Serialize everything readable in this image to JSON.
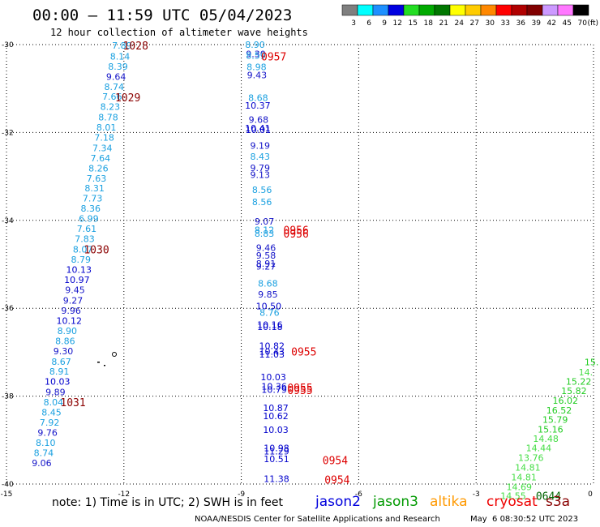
{
  "header": {
    "title": "00:00 — 11:59 UTC 05/04/2023",
    "subtitle": "12 hour collection of altimeter wave heights"
  },
  "legend": {
    "unit": "(ft)",
    "items": [
      {
        "label": "3",
        "color": "#7f7f7f"
      },
      {
        "label": "6",
        "color": "#00ffff"
      },
      {
        "label": "9",
        "color": "#1e90ff"
      },
      {
        "label": "12",
        "color": "#0000e0"
      },
      {
        "label": "15",
        "color": "#22dd22"
      },
      {
        "label": "18",
        "color": "#00aa00"
      },
      {
        "label": "21",
        "color": "#007700"
      },
      {
        "label": "24",
        "color": "#ffff00"
      },
      {
        "label": "27",
        "color": "#ffcc00"
      },
      {
        "label": "30",
        "color": "#ff8800"
      },
      {
        "label": "33",
        "color": "#ff0000"
      },
      {
        "label": "36",
        "color": "#b00000"
      },
      {
        "label": "39",
        "color": "#800000"
      },
      {
        "label": "42",
        "color": "#cc99ff"
      },
      {
        "label": "45",
        "color": "#ff77ff"
      },
      {
        "label": "70",
        "color": "#000000"
      }
    ]
  },
  "axes": {
    "x_ticks": [
      "-15",
      "-12",
      "-9",
      "-6",
      "-3",
      "0"
    ],
    "y_ticks": [
      "-30",
      "-32",
      "-34",
      "-36",
      "-38",
      "-40"
    ]
  },
  "chart_data": {
    "type": "scatter",
    "xlim": [
      -15,
      0
    ],
    "ylim": [
      -40,
      -30
    ],
    "colors": {
      "c6": "#1aa0e0",
      "c9": "#1414c8",
      "c12": "#0000cc",
      "g15": "#22cc22",
      "g18": "#44dd44",
      "time_a": "#8b0000",
      "time_b": "#dd0000",
      "time_c": "#006400"
    },
    "tracks": [
      {
        "points": [
          {
            "x": -12.05,
            "y": -30.02,
            "label": "7.89",
            "c": "c6"
          },
          {
            "x": -12.1,
            "y": -30.27,
            "label": "8.14",
            "c": "c6"
          },
          {
            "x": -12.15,
            "y": -30.5,
            "label": "8.39",
            "c": "c6"
          },
          {
            "x": -12.2,
            "y": -30.73,
            "label": "9.64",
            "c": "c9"
          },
          {
            "x": -12.25,
            "y": -30.96,
            "label": "8.74",
            "c": "c6"
          },
          {
            "x": -12.3,
            "y": -31.18,
            "label": "7.66",
            "c": "c6"
          },
          {
            "x": -12.35,
            "y": -31.41,
            "label": "8.23",
            "c": "c6"
          },
          {
            "x": -12.4,
            "y": -31.65,
            "label": "8.78",
            "c": "c6"
          },
          {
            "x": -12.45,
            "y": -31.88,
            "label": "8.01",
            "c": "c6"
          },
          {
            "x": -12.5,
            "y": -32.11,
            "label": "7.18",
            "c": "c6"
          },
          {
            "x": -12.55,
            "y": -32.35,
            "label": "7.34",
            "c": "c6"
          },
          {
            "x": -12.6,
            "y": -32.58,
            "label": "7.64",
            "c": "c6"
          },
          {
            "x": -12.65,
            "y": -32.81,
            "label": "8.26",
            "c": "c6"
          },
          {
            "x": -12.7,
            "y": -33.04,
            "label": "7.63",
            "c": "c6"
          },
          {
            "x": -12.75,
            "y": -33.27,
            "label": "8.31",
            "c": "c6"
          },
          {
            "x": -12.8,
            "y": -33.5,
            "label": "7.73",
            "c": "c6"
          },
          {
            "x": -12.85,
            "y": -33.73,
            "label": "8.36",
            "c": "c6"
          },
          {
            "x": -12.9,
            "y": -33.96,
            "label": "6.99",
            "c": "c6"
          },
          {
            "x": -12.95,
            "y": -34.19,
            "label": "7.61",
            "c": "c6"
          },
          {
            "x": -13.0,
            "y": -34.42,
            "label": "7.83",
            "c": "c6"
          },
          {
            "x": -13.05,
            "y": -34.66,
            "label": "8.07",
            "c": "c6"
          },
          {
            "x": -13.1,
            "y": -34.89,
            "label": "8.79",
            "c": "c6"
          },
          {
            "x": -13.15,
            "y": -35.12,
            "label": "10.13",
            "c": "c12"
          },
          {
            "x": -13.2,
            "y": -35.35,
            "label": "10.97",
            "c": "c12"
          },
          {
            "x": -13.25,
            "y": -35.58,
            "label": "9.45",
            "c": "c9"
          },
          {
            "x": -13.3,
            "y": -35.82,
            "label": "9.27",
            "c": "c9"
          },
          {
            "x": -13.35,
            "y": -36.05,
            "label": "9.96",
            "c": "c9"
          },
          {
            "x": -13.4,
            "y": -36.28,
            "label": "10.12",
            "c": "c12"
          },
          {
            "x": -13.45,
            "y": -36.51,
            "label": "8.90",
            "c": "c6"
          },
          {
            "x": -13.5,
            "y": -36.74,
            "label": "8.86",
            "c": "c6"
          },
          {
            "x": -13.55,
            "y": -36.97,
            "label": "9.30",
            "c": "c9"
          },
          {
            "x": -13.6,
            "y": -37.21,
            "label": "8.67",
            "c": "c6"
          },
          {
            "x": -13.65,
            "y": -37.44,
            "label": "8.91",
            "c": "c6"
          },
          {
            "x": -13.7,
            "y": -37.67,
            "label": "10.03",
            "c": "c12"
          },
          {
            "x": -13.75,
            "y": -37.91,
            "label": "9.89",
            "c": "c9"
          },
          {
            "x": -13.8,
            "y": -38.14,
            "label": "8.04",
            "c": "c6"
          },
          {
            "x": -13.85,
            "y": -38.37,
            "label": "8.45",
            "c": "c6"
          },
          {
            "x": -13.9,
            "y": -38.6,
            "label": "7.92",
            "c": "c6"
          },
          {
            "x": -13.95,
            "y": -38.83,
            "label": "9.76",
            "c": "c9"
          },
          {
            "x": -14.0,
            "y": -39.06,
            "label": "8.10",
            "c": "c6"
          },
          {
            "x": -14.05,
            "y": -39.29,
            "label": "8.74",
            "c": "c6"
          },
          {
            "x": -14.1,
            "y": -39.52,
            "label": "9.06",
            "c": "c9"
          }
        ],
        "times": [
          {
            "x": -11.7,
            "y": -30.02,
            "label": "1028",
            "c": "time_a"
          },
          {
            "x": -11.9,
            "y": -31.2,
            "label": "1029",
            "c": "time_a"
          },
          {
            "x": -12.7,
            "y": -34.66,
            "label": "1030",
            "c": "time_a"
          },
          {
            "x": -13.3,
            "y": -38.14,
            "label": "1031",
            "c": "time_a"
          }
        ]
      },
      {
        "points": [
          {
            "x": -8.65,
            "y": -30.0,
            "label": "8.90",
            "c": "c6"
          },
          {
            "x": -8.63,
            "y": -30.21,
            "label": "9.30",
            "c": "c9"
          },
          {
            "x": -8.63,
            "y": -30.25,
            "label": "8.59",
            "c": "c6"
          },
          {
            "x": -8.61,
            "y": -30.51,
            "label": "8.98",
            "c": "c6"
          },
          {
            "x": -8.6,
            "y": -30.69,
            "label": "9.43",
            "c": "c9"
          },
          {
            "x": -8.57,
            "y": -31.21,
            "label": "8.68",
            "c": "c6"
          },
          {
            "x": -8.58,
            "y": -31.38,
            "label": "10.37",
            "c": "c12"
          },
          {
            "x": -8.56,
            "y": -31.71,
            "label": "9.68",
            "c": "c9"
          },
          {
            "x": -8.58,
            "y": -31.9,
            "label": "10.41",
            "c": "c12"
          },
          {
            "x": -8.57,
            "y": -31.94,
            "label": "10.01",
            "c": "c12"
          },
          {
            "x": -8.52,
            "y": -32.3,
            "label": "9.19",
            "c": "c9"
          },
          {
            "x": -8.52,
            "y": -32.55,
            "label": "8.43",
            "c": "c6"
          },
          {
            "x": -8.52,
            "y": -32.8,
            "label": "9.79",
            "c": "c9"
          },
          {
            "x": -8.52,
            "y": -32.96,
            "label": "9.13",
            "c": "c9"
          },
          {
            "x": -8.47,
            "y": -33.3,
            "label": "8.56",
            "c": "c6"
          },
          {
            "x": -8.47,
            "y": -33.58,
            "label": "8.56",
            "c": "c6"
          },
          {
            "x": -8.41,
            "y": -34.02,
            "label": "9.07",
            "c": "c9"
          },
          {
            "x": -8.41,
            "y": -34.22,
            "label": "8.12",
            "c": "c6"
          },
          {
            "x": -8.41,
            "y": -34.3,
            "label": "8.83",
            "c": "c6"
          },
          {
            "x": -8.37,
            "y": -34.62,
            "label": "9.46",
            "c": "c9"
          },
          {
            "x": -8.37,
            "y": -34.8,
            "label": "9.58",
            "c": "c9"
          },
          {
            "x": -8.37,
            "y": -34.98,
            "label": "8.91",
            "c": "c9"
          },
          {
            "x": -8.37,
            "y": -35.05,
            "label": "9.27",
            "c": "c9"
          },
          {
            "x": -8.32,
            "y": -35.43,
            "label": "8.68",
            "c": "c6"
          },
          {
            "x": -8.32,
            "y": -35.68,
            "label": "9.85",
            "c": "c9"
          },
          {
            "x": -8.3,
            "y": -35.95,
            "label": "10.50",
            "c": "c12"
          },
          {
            "x": -8.28,
            "y": -36.1,
            "label": "8.76",
            "c": "c6"
          },
          {
            "x": -8.27,
            "y": -36.37,
            "label": "10.16",
            "c": "c12"
          },
          {
            "x": -8.27,
            "y": -36.42,
            "label": "10.18",
            "c": "c12"
          },
          {
            "x": -8.22,
            "y": -36.85,
            "label": "10.82",
            "c": "c12"
          },
          {
            "x": -8.22,
            "y": -36.98,
            "label": "10.43",
            "c": "c12"
          },
          {
            "x": -8.22,
            "y": -37.05,
            "label": "11.03",
            "c": "c12"
          },
          {
            "x": -8.18,
            "y": -37.56,
            "label": "10.03",
            "c": "c12"
          },
          {
            "x": -8.16,
            "y": -37.78,
            "label": "10.36",
            "c": "c12"
          },
          {
            "x": -8.16,
            "y": -37.85,
            "label": "10.79",
            "c": "c12"
          },
          {
            "x": -8.12,
            "y": -38.27,
            "label": "10.87",
            "c": "c12"
          },
          {
            "x": -8.12,
            "y": -38.45,
            "label": "10.62",
            "c": "c12"
          },
          {
            "x": -8.12,
            "y": -38.76,
            "label": "10.03",
            "c": "c12"
          },
          {
            "x": -8.1,
            "y": -39.18,
            "label": "10.98",
            "c": "c12"
          },
          {
            "x": -8.1,
            "y": -39.25,
            "label": "11.29",
            "c": "c12"
          },
          {
            "x": -8.1,
            "y": -39.43,
            "label": "10.51",
            "c": "c12"
          },
          {
            "x": -8.1,
            "y": -39.88,
            "label": "11.38",
            "c": "c12"
          }
        ],
        "times": [
          {
            "x": -8.17,
            "y": -30.27,
            "label": "0957",
            "c": "time_b"
          },
          {
            "x": -7.6,
            "y": -34.22,
            "label": "0956",
            "c": "time_b"
          },
          {
            "x": -7.6,
            "y": -34.3,
            "label": "0956",
            "c": "time_b"
          },
          {
            "x": -7.4,
            "y": -36.98,
            "label": "0955",
            "c": "time_b"
          },
          {
            "x": -7.5,
            "y": -37.8,
            "label": "0955",
            "c": "time_b"
          },
          {
            "x": -7.5,
            "y": -37.86,
            "label": "0955",
            "c": "time_b"
          },
          {
            "x": -6.6,
            "y": -39.46,
            "label": "0954",
            "c": "time_b"
          },
          {
            "x": -6.55,
            "y": -39.9,
            "label": "0954",
            "c": "time_b"
          }
        ]
      },
      {
        "points": [
          {
            "x": -0.05,
            "y": -37.22,
            "label": "15.",
            "c": "g15"
          },
          {
            "x": -0.2,
            "y": -37.45,
            "label": "14.",
            "c": "g18"
          },
          {
            "x": -0.38,
            "y": -37.67,
            "label": "15.22",
            "c": "g15"
          },
          {
            "x": -0.5,
            "y": -37.88,
            "label": "15.82",
            "c": "g15"
          },
          {
            "x": -0.72,
            "y": -38.1,
            "label": "16.02",
            "c": "g15"
          },
          {
            "x": -0.88,
            "y": -38.32,
            "label": "16.52",
            "c": "g15"
          },
          {
            "x": -0.98,
            "y": -38.53,
            "label": "15.79",
            "c": "g15"
          },
          {
            "x": -1.1,
            "y": -38.75,
            "label": "15.16",
            "c": "g15"
          },
          {
            "x": -1.22,
            "y": -38.97,
            "label": "14.48",
            "c": "g18"
          },
          {
            "x": -1.4,
            "y": -39.18,
            "label": "14.44",
            "c": "g18"
          },
          {
            "x": -1.6,
            "y": -39.4,
            "label": "13.76",
            "c": "g18"
          },
          {
            "x": -1.68,
            "y": -39.62,
            "label": "14.81",
            "c": "g18"
          },
          {
            "x": -1.78,
            "y": -39.84,
            "label": "14.81",
            "c": "g18"
          },
          {
            "x": -1.9,
            "y": -40.06,
            "label": "14.69",
            "c": "g18"
          },
          {
            "x": -2.05,
            "y": -40.27,
            "label": "14.55",
            "c": "g18"
          }
        ],
        "times": [
          {
            "x": -1.15,
            "y": -40.27,
            "label": "0644",
            "c": "time_c"
          }
        ]
      }
    ]
  },
  "footer": {
    "note": "note: 1) Time is in UTC; 2) SWH is in feet",
    "satellites": [
      {
        "label": "jason2",
        "color": "#0000dd"
      },
      {
        "label": "jason3",
        "color": "#009900"
      },
      {
        "label": "altika",
        "color": "#ff9900"
      },
      {
        "label": "cryosat",
        "color": "#ee0000"
      },
      {
        "label": "s3a",
        "color": "#880000"
      }
    ],
    "credit": "NOAA/NESDIS Center for Satellite Applications and Research",
    "timestamp": "May  6 08:30:52 UTC 2023"
  }
}
